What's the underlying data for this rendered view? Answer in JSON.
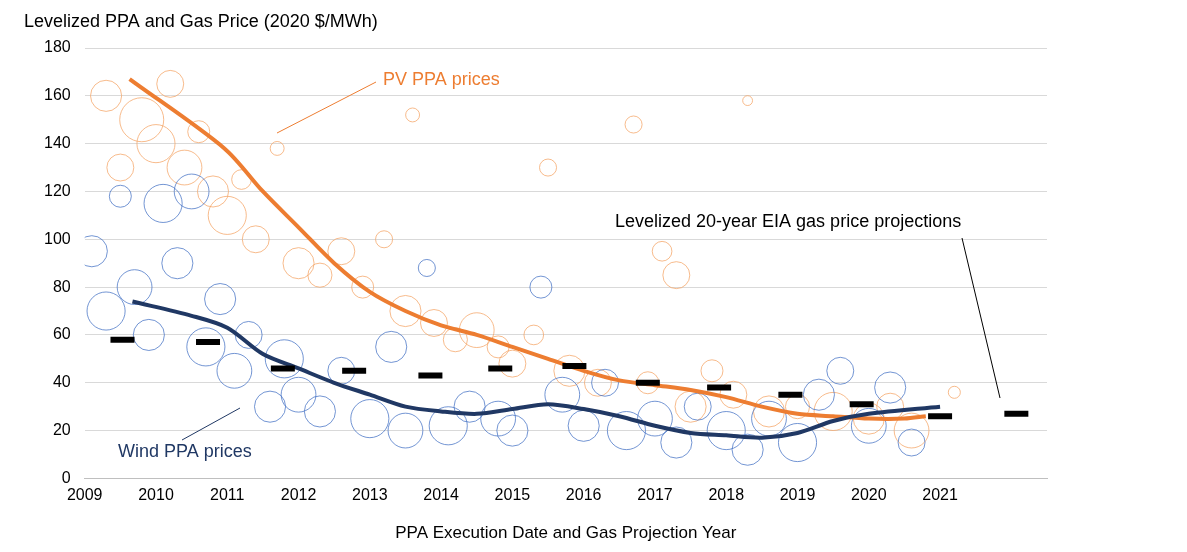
{
  "chart_data": {
    "type": "bubble",
    "y_label": "Levelized PPA and Gas Price (2020 $/MWh)",
    "x_label": "PPA Execution Date and Gas Projection Year",
    "xlim": [
      2009,
      2022.5
    ],
    "xticks": [
      2009,
      2010,
      2011,
      2012,
      2013,
      2014,
      2015,
      2016,
      2017,
      2018,
      2019,
      2020,
      2021
    ],
    "ylim": [
      0,
      180
    ],
    "yticks": [
      0,
      20,
      40,
      60,
      80,
      100,
      120,
      140,
      160,
      180
    ],
    "grid": "y",
    "series": [
      {
        "name": "PV PPA prices",
        "type": "bubble",
        "marker": "circle",
        "color": "#f4a466",
        "x": [
          2009.3,
          2009.5,
          2009.8,
          2010.0,
          2010.2,
          2010.4,
          2010.6,
          2010.8,
          2011.0,
          2011.2,
          2011.4,
          2011.7,
          2012.0,
          2012.3,
          2012.6,
          2012.9,
          2013.2,
          2013.5,
          2013.6,
          2013.9,
          2014.2,
          2014.5,
          2014.8,
          2015.0,
          2015.3,
          2015.5,
          2015.8,
          2016.2,
          2016.7,
          2016.9,
          2017.1,
          2017.3,
          2017.5,
          2017.8,
          2018.1,
          2018.3,
          2018.6,
          2019.0,
          2019.5,
          2020.0,
          2020.3,
          2020.6,
          2021.2
        ],
        "values": [
          160,
          130,
          150,
          140,
          165,
          130,
          145,
          120,
          110,
          125,
          100,
          138,
          90,
          85,
          95,
          80,
          100,
          70,
          152,
          65,
          58,
          62,
          55,
          48,
          60,
          130,
          45,
          40,
          148,
          40,
          95,
          85,
          30,
          45,
          35,
          158,
          28,
          30,
          28,
          25,
          30,
          20,
          36
        ],
        "sizes": [
          200,
          150,
          400,
          300,
          150,
          250,
          100,
          200,
          300,
          80,
          150,
          40,
          200,
          120,
          150,
          100,
          60,
          200,
          40,
          150,
          120,
          250,
          100,
          150,
          80,
          60,
          200,
          150,
          60,
          100,
          80,
          150,
          200,
          100,
          150,
          20,
          200,
          120,
          300,
          200,
          150,
          250,
          30
        ],
        "trend": {
          "color": "#ed7d31",
          "x": [
            2009.63,
            2010.96,
            2011.5,
            2012.0,
            2012.5,
            2013.0,
            2013.5,
            2014.0,
            2014.5,
            2015.0,
            2015.5,
            2016.0,
            2016.5,
            2017.0,
            2017.5,
            2018.0,
            2018.5,
            2019.0,
            2019.5,
            2020.0,
            2020.5,
            2020.8
          ],
          "values": [
            167,
            138,
            120,
            105,
            90,
            78,
            70,
            64,
            60,
            55,
            50,
            45,
            41,
            39,
            37,
            34,
            30,
            27,
            26,
            25,
            25,
            26
          ]
        }
      },
      {
        "name": "Wind PPA prices",
        "type": "bubble",
        "marker": "circle",
        "color": "#4472c4",
        "x": [
          2009.1,
          2009.3,
          2009.5,
          2009.7,
          2009.9,
          2010.1,
          2010.3,
          2010.5,
          2010.7,
          2010.9,
          2011.1,
          2011.3,
          2011.6,
          2011.8,
          2012.0,
          2012.3,
          2012.6,
          2013.0,
          2013.3,
          2013.5,
          2013.8,
          2014.1,
          2014.4,
          2014.8,
          2015.0,
          2015.4,
          2015.7,
          2016.0,
          2016.3,
          2016.6,
          2017.0,
          2017.3,
          2017.6,
          2018.0,
          2018.3,
          2018.6,
          2019.0,
          2019.3,
          2019.6,
          2020.0,
          2020.3,
          2020.6
        ],
        "values": [
          95,
          70,
          118,
          80,
          60,
          115,
          90,
          120,
          55,
          75,
          45,
          60,
          30,
          50,
          35,
          28,
          45,
          25,
          55,
          20,
          88,
          22,
          30,
          25,
          20,
          80,
          35,
          22,
          40,
          20,
          25,
          15,
          30,
          20,
          12,
          25,
          15,
          35,
          45,
          22,
          38,
          15
        ],
        "sizes": [
          200,
          300,
          100,
          250,
          200,
          300,
          200,
          250,
          300,
          200,
          250,
          150,
          200,
          300,
          250,
          200,
          150,
          300,
          200,
          250,
          60,
          300,
          200,
          250,
          200,
          100,
          250,
          200,
          150,
          300,
          250,
          200,
          150,
          300,
          200,
          250,
          300,
          200,
          150,
          250,
          200,
          150
        ],
        "trend": {
          "color": "#203864",
          "x": [
            2009.67,
            2010.5,
            2011.0,
            2011.5,
            2012.0,
            2012.5,
            2013.0,
            2013.5,
            2014.0,
            2014.5,
            2015.0,
            2015.5,
            2016.0,
            2016.5,
            2017.0,
            2017.5,
            2018.0,
            2018.5,
            2019.0,
            2019.5,
            2020.0,
            2021.0
          ],
          "values": [
            74,
            68,
            63,
            52,
            46,
            40,
            35,
            30,
            28,
            27,
            29,
            31,
            29,
            26,
            22,
            19,
            18,
            17,
            19,
            24,
            27,
            30
          ]
        }
      },
      {
        "name": "Levelized 20-year EIA gas price projections",
        "type": "scatter",
        "marker": "dash",
        "color": "#000000",
        "x": [
          2009.53,
          2010.73,
          2011.78,
          2012.78,
          2013.85,
          2014.83,
          2015.87,
          2016.9,
          2017.9,
          2018.9,
          2019.9,
          2021.0,
          2022.07
        ],
        "values": [
          58,
          57,
          46,
          45,
          43,
          46,
          47,
          40,
          38,
          35,
          31,
          26,
          27
        ]
      }
    ]
  }
}
